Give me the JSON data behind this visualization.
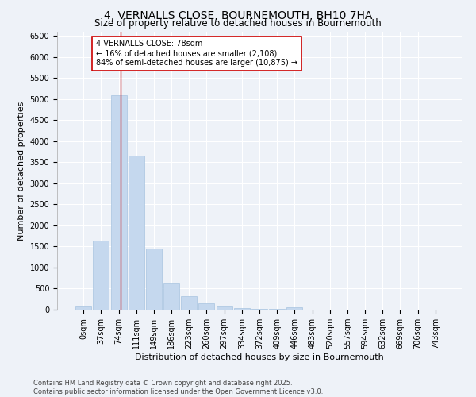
{
  "title": "4, VERNALLS CLOSE, BOURNEMOUTH, BH10 7HA",
  "subtitle": "Size of property relative to detached houses in Bournemouth",
  "xlabel": "Distribution of detached houses by size in Bournemouth",
  "ylabel": "Number of detached properties",
  "bar_color": "#c5d8ee",
  "bar_edge_color": "#a8c4e0",
  "vline_color": "#cc0000",
  "vline_x_idx": 2,
  "categories": [
    "0sqm",
    "37sqm",
    "74sqm",
    "111sqm",
    "149sqm",
    "186sqm",
    "223sqm",
    "260sqm",
    "297sqm",
    "334sqm",
    "372sqm",
    "409sqm",
    "446sqm",
    "483sqm",
    "520sqm",
    "557sqm",
    "594sqm",
    "632sqm",
    "669sqm",
    "706sqm",
    "743sqm"
  ],
  "values": [
    70,
    1650,
    5100,
    3650,
    1450,
    620,
    330,
    150,
    70,
    30,
    20,
    20,
    50,
    5,
    3,
    2,
    2,
    1,
    1,
    1,
    1
  ],
  "ylim": [
    0,
    6600
  ],
  "yticks": [
    0,
    500,
    1000,
    1500,
    2000,
    2500,
    3000,
    3500,
    4000,
    4500,
    5000,
    5500,
    6000,
    6500
  ],
  "annotation_text": "4 VERNALLS CLOSE: 78sqm\n← 16% of detached houses are smaller (2,108)\n84% of semi-detached houses are larger (10,875) →",
  "annotation_box_color": "#ffffff",
  "annotation_box_edge": "#cc0000",
  "footer_line1": "Contains HM Land Registry data © Crown copyright and database right 2025.",
  "footer_line2": "Contains public sector information licensed under the Open Government Licence v3.0.",
  "background_color": "#eef2f8",
  "plot_bg_color": "#eef2f8",
  "grid_color": "#ffffff",
  "title_fontsize": 10,
  "subtitle_fontsize": 8.5,
  "axis_label_fontsize": 8,
  "tick_fontsize": 7,
  "annotation_fontsize": 7,
  "footer_fontsize": 6
}
